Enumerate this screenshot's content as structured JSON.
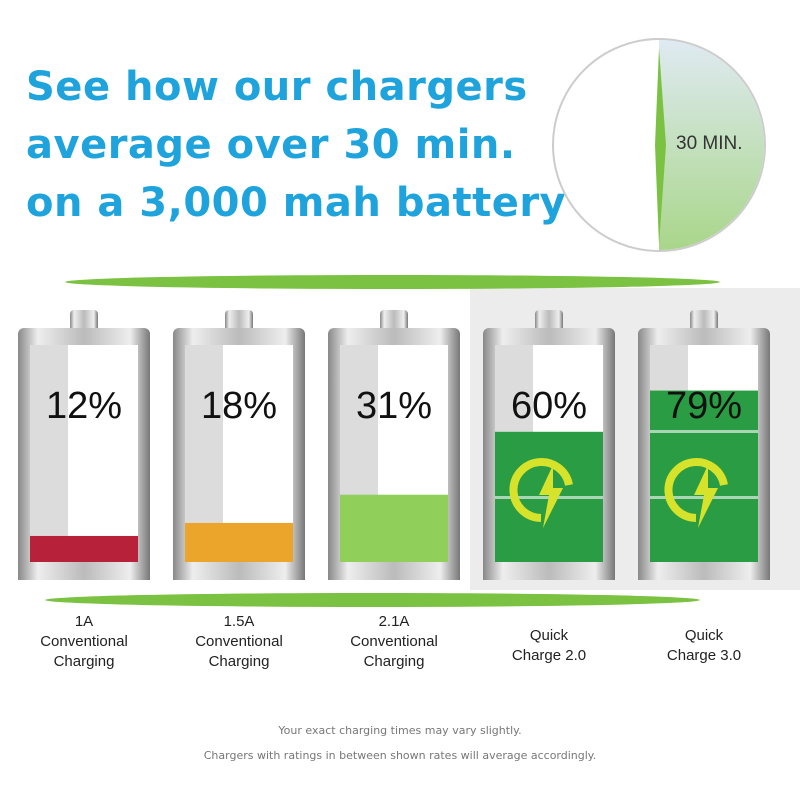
{
  "headline": [
    "See how our chargers",
    "average over 30 min.",
    "on a 3,000 mah battery"
  ],
  "clock_label": "30 MIN.",
  "chart_data": {
    "type": "bar",
    "categories": [
      "1A Conventional Charging",
      "1.5A Conventional Charging",
      "2.1A Conventional Charging",
      "Quick Charge 2.0",
      "Quick Charge 3.0"
    ],
    "category_lines": [
      [
        "1A",
        "Conventional",
        "Charging"
      ],
      [
        "1.5A",
        "Conventional",
        "Charging"
      ],
      [
        "2.1A",
        "Conventional",
        "Charging"
      ],
      [
        "Quick",
        "Charge 2.0"
      ],
      [
        "Quick",
        "Charge 3.0"
      ]
    ],
    "values": [
      12,
      18,
      31,
      60,
      79
    ],
    "value_labels": [
      "12%",
      "18%",
      "31%",
      "60%",
      "79%"
    ],
    "ylim": [
      0,
      100
    ],
    "colors": [
      "#b8213a",
      "#eaa52a",
      "#8fcf5a",
      "#2a9c44",
      "#2a9c44"
    ],
    "quick_charge_icon": "quick-charge-bolt-icon"
  },
  "notes": [
    "Your exact charging times may vary slightly.",
    "Chargers with ratings in between shown rates will average accordingly."
  ]
}
